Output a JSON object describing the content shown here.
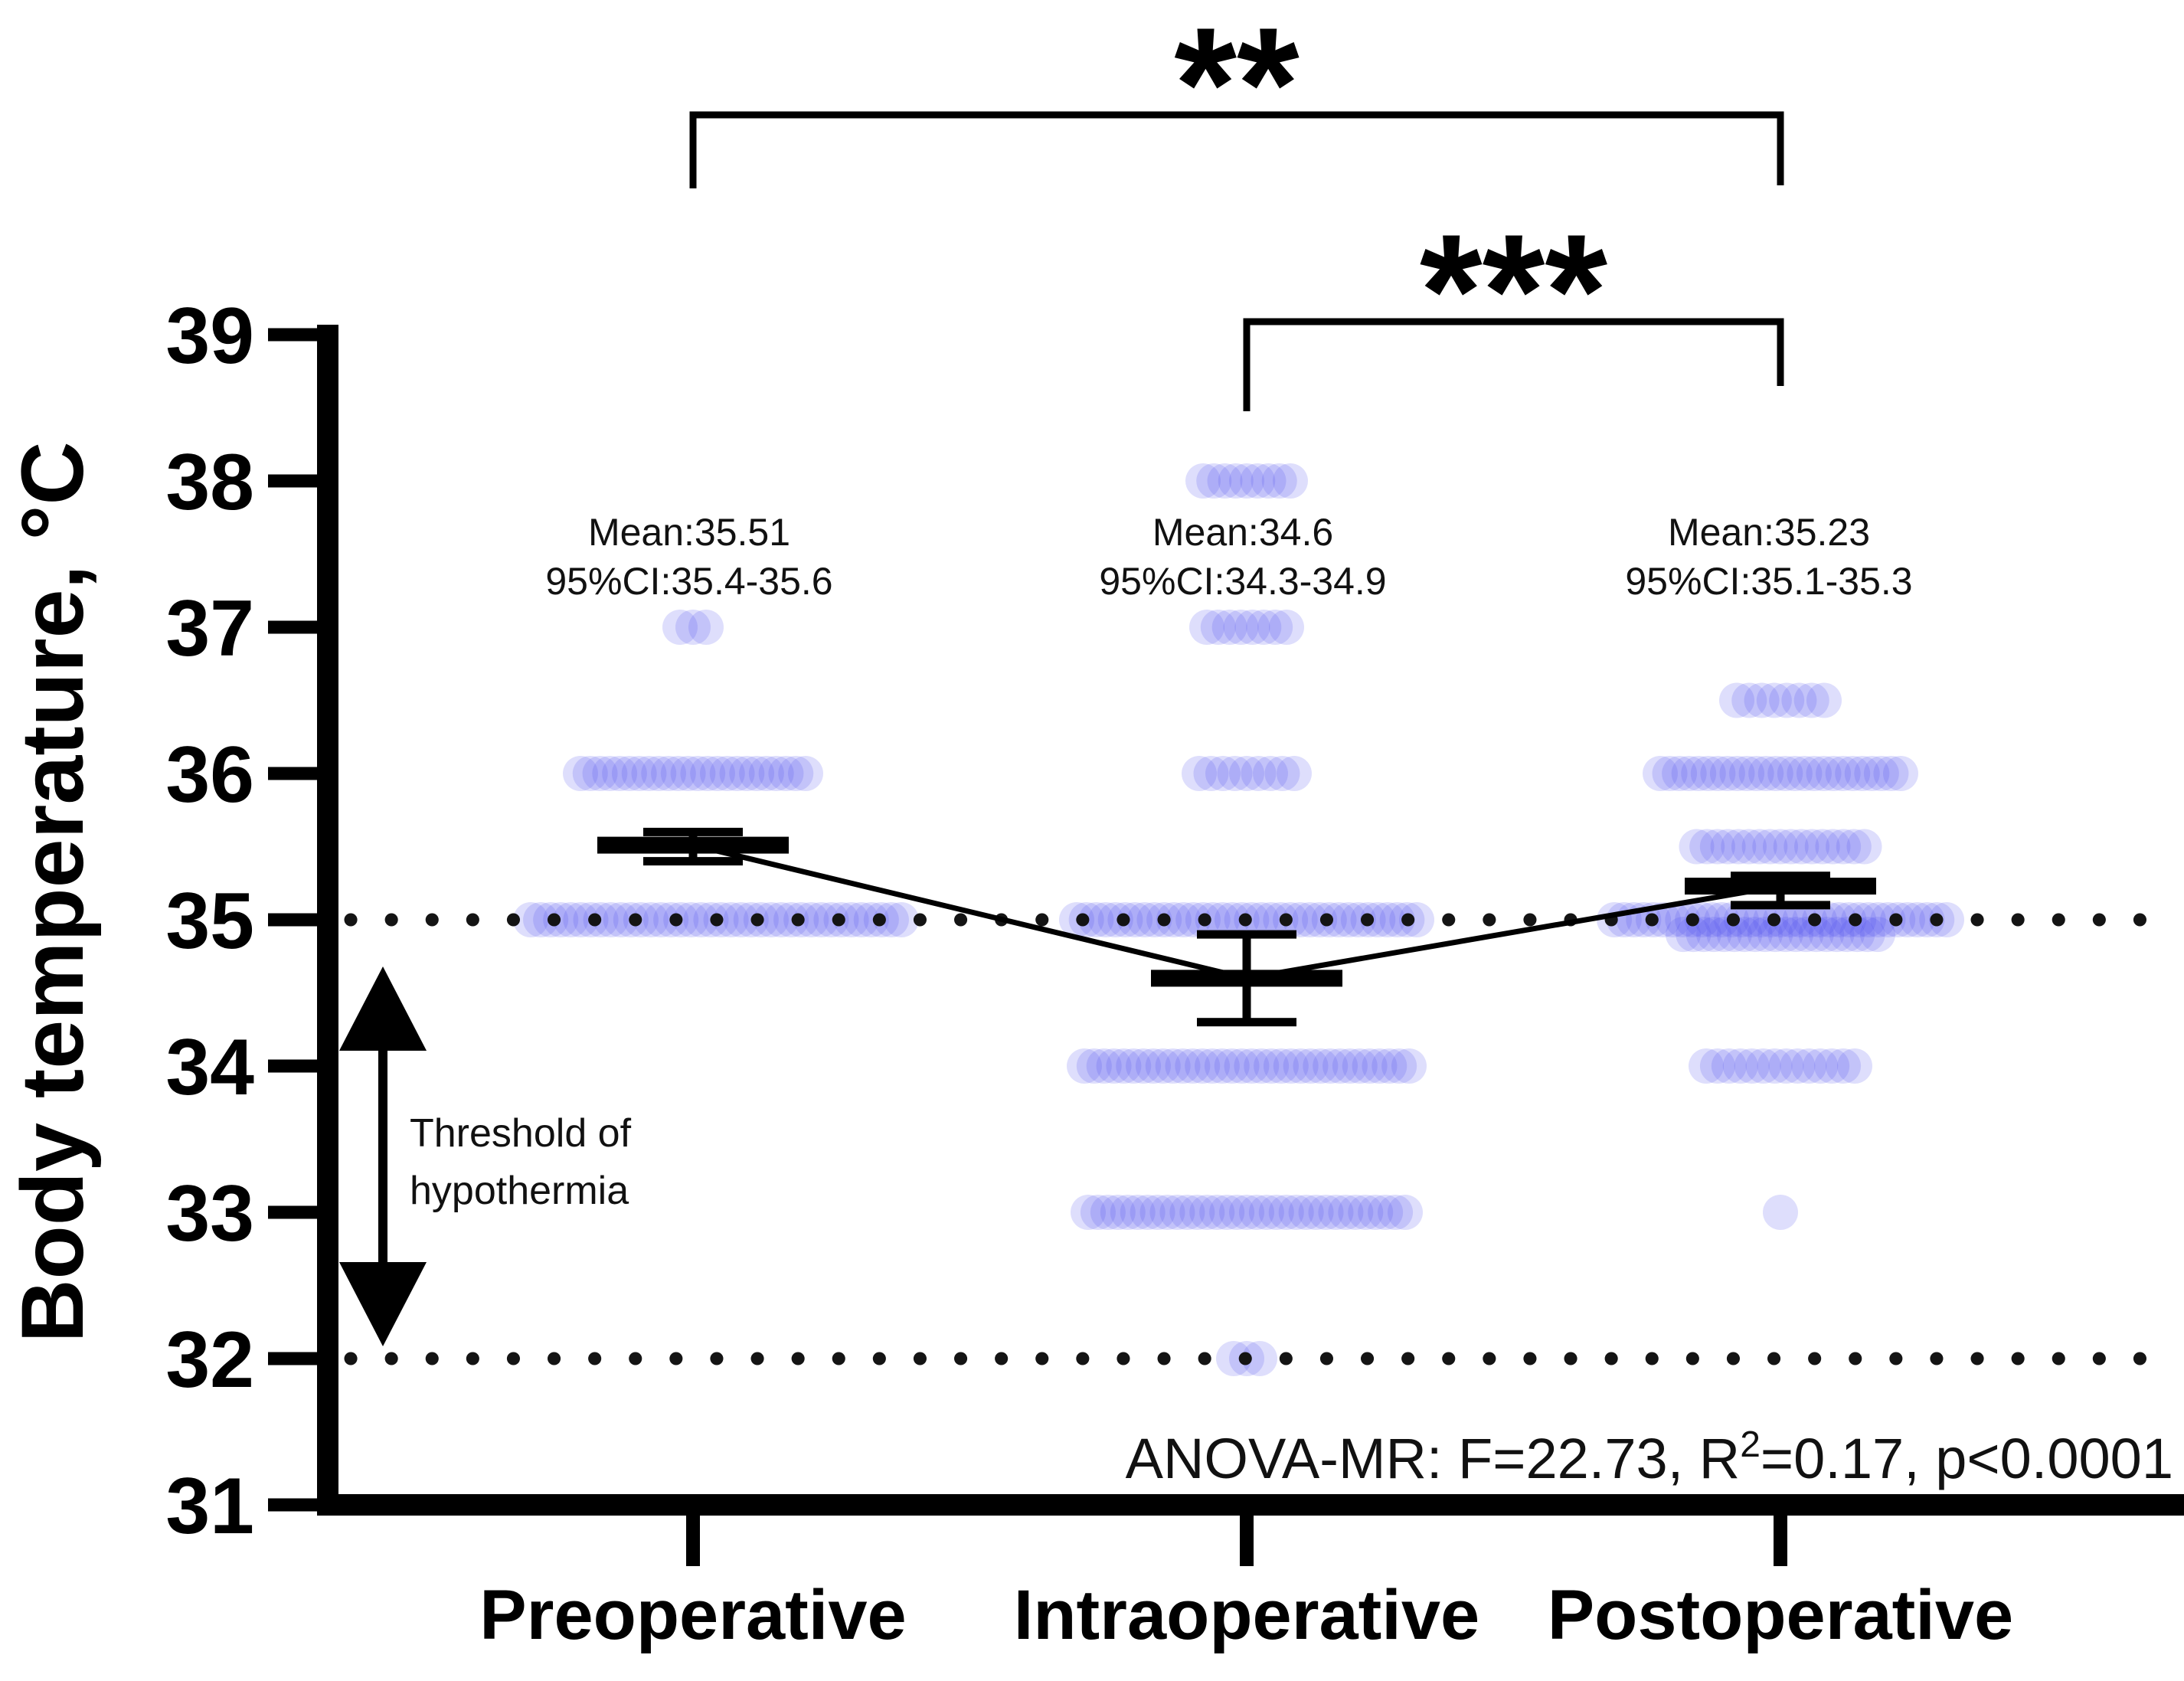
{
  "page": {
    "background": "#ffffff"
  },
  "figure": {
    "y_axis_title": "Body temperature, °C",
    "threshold_label": {
      "line1": "Threshold of",
      "line2": "hypothermia"
    },
    "anova": {
      "prefix": "ANOVA-MR: F=22.73, R",
      "superscript": "2",
      "suffix": "=0.17, p<0.0001"
    }
  },
  "chart_data": {
    "type": "scatter",
    "subtype": "jittered-dot-plot-with-mean-and-95ci",
    "title": "",
    "xlabel": "",
    "ylabel": "Body temperature, °C",
    "ylim": [
      31,
      39
    ],
    "yticks": [
      39,
      38,
      37,
      36,
      35,
      34,
      33,
      32,
      31
    ],
    "grid": false,
    "legend_position": "none",
    "categories": [
      "Preoperative",
      "Intraoperative",
      "Postoperative"
    ],
    "threshold_lines_c": [
      35,
      32
    ],
    "series": [
      {
        "name": "Preoperative",
        "mean": 35.51,
        "ci95": [
          35.4,
          35.6
        ],
        "annotation_lines": [
          "Mean:35.51",
          "95%CI:35.4-35.6"
        ],
        "rows": [
          {
            "temp": 37,
            "n": 3,
            "spread": 80
          },
          {
            "temp": 36,
            "n": 24,
            "spread": 340
          },
          {
            "temp": 35,
            "n": 38,
            "spread": 530,
            "dx": 30
          }
        ]
      },
      {
        "name": "Intraoperative",
        "mean": 34.6,
        "ci95": [
          34.3,
          34.9
        ],
        "annotation_lines": [
          "Mean:34.6",
          "95%CI:34.3-34.9"
        ],
        "rows": [
          {
            "temp": 38,
            "n": 9,
            "spread": 160
          },
          {
            "temp": 37,
            "n": 8,
            "spread": 150
          },
          {
            "temp": 36,
            "n": 9,
            "spread": 170
          },
          {
            "temp": 35,
            "n": 36,
            "spread": 490
          },
          {
            "temp": 34,
            "n": 34,
            "spread": 470
          },
          {
            "temp": 33,
            "n": 33,
            "spread": 460
          },
          {
            "temp": 32,
            "n": 3,
            "spread": 80
          }
        ]
      },
      {
        "name": "Postoperative",
        "mean": 35.23,
        "ci95": [
          35.1,
          35.3
        ],
        "annotation_lines": [
          "Mean:35.23",
          "95%CI:35.1-35.3"
        ],
        "rows": [
          {
            "temp": 36.5,
            "n": 8,
            "spread": 160
          },
          {
            "temp": 36,
            "n": 26,
            "spread": 360
          },
          {
            "temp": 35.5,
            "n": 17,
            "spread": 265
          },
          {
            "temp": 35,
            "n": 35,
            "spread": 480
          },
          {
            "temp": 34.9,
            "n": 20,
            "spread": 300
          },
          {
            "temp": 34,
            "n": 14,
            "spread": 240
          },
          {
            "temp": 33,
            "n": 1,
            "spread": 0
          }
        ]
      }
    ],
    "significance": [
      {
        "label": "**",
        "from": "Preoperative",
        "to": "Postoperative"
      },
      {
        "label": "***",
        "from": "Intraoperative",
        "to": "Postoperative"
      }
    ],
    "stats_annotation": "ANOVA-MR: F=22.73, R2=0.17, p<0.0001"
  },
  "colors": {
    "dot": "#4e4eef",
    "dot_alpha": 0.19,
    "axis": "#000000",
    "text": "#111111",
    "background": "#ffffff"
  }
}
